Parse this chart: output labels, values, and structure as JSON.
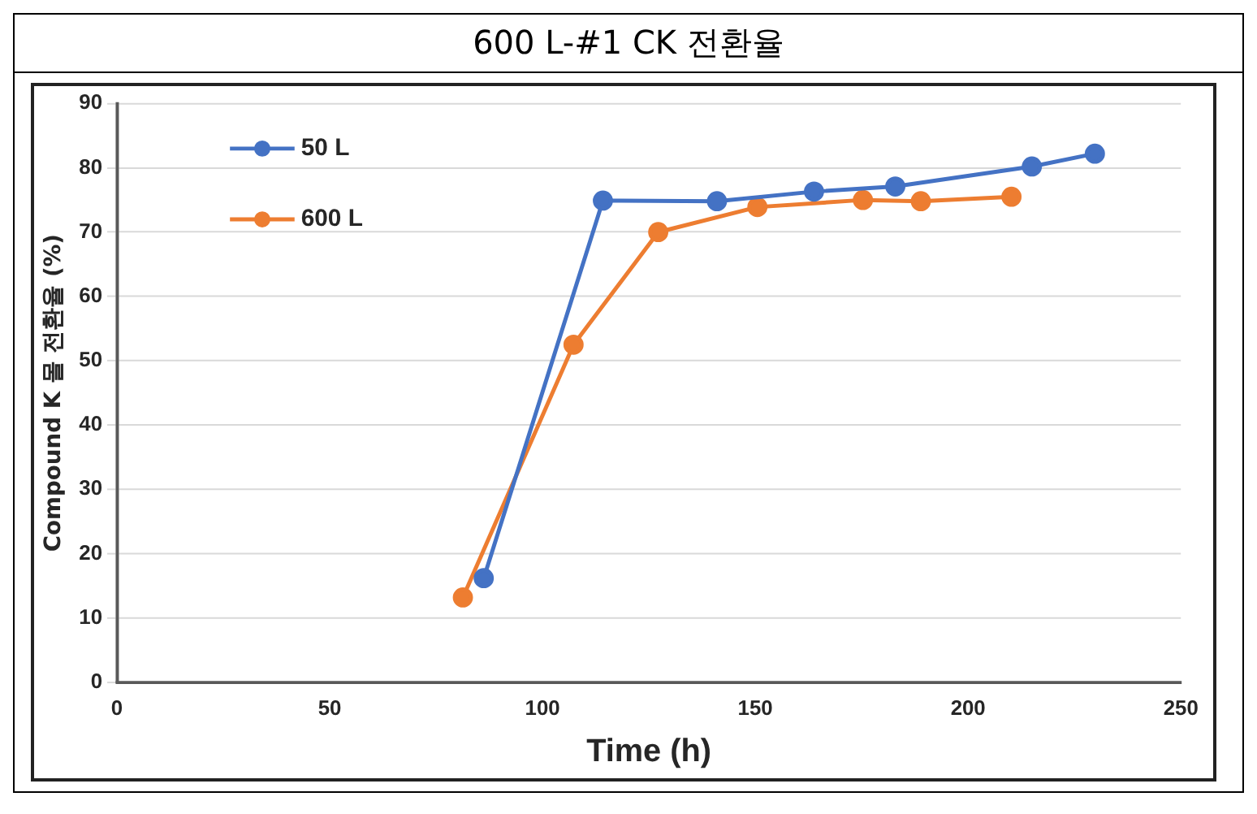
{
  "chart_data": {
    "type": "line",
    "title": "600 L-#1 CK 전환율",
    "xlabel": "Time (h)",
    "ylabel": "Compound K 몰 전환율 (%)",
    "series": [
      {
        "name": "50 L",
        "color": "#4472c4",
        "x": [
          86.2,
          114.2,
          141,
          163.8,
          182.9,
          215,
          229.8
        ],
        "values": [
          16.2,
          74.9,
          74.8,
          76.3,
          77.1,
          80.2,
          82.2
        ]
      },
      {
        "name": "600 L",
        "color": "#ed7d31",
        "x": [
          81.3,
          107.3,
          127.2,
          150.5,
          175.3,
          188.9,
          210.2
        ],
        "values": [
          13.2,
          52.5,
          70,
          73.9,
          75,
          74.8,
          75.5
        ]
      }
    ],
    "xlim": [
      0,
      250
    ],
    "xticks": [
      0,
      50,
      100,
      150,
      200,
      250
    ],
    "ylim": [
      0,
      90
    ],
    "yticks": [
      0,
      10,
      20,
      30,
      40,
      50,
      60,
      70,
      80,
      90
    ],
    "grid": "y",
    "legend": "top left",
    "marker": "circle",
    "line_style": "solid"
  }
}
